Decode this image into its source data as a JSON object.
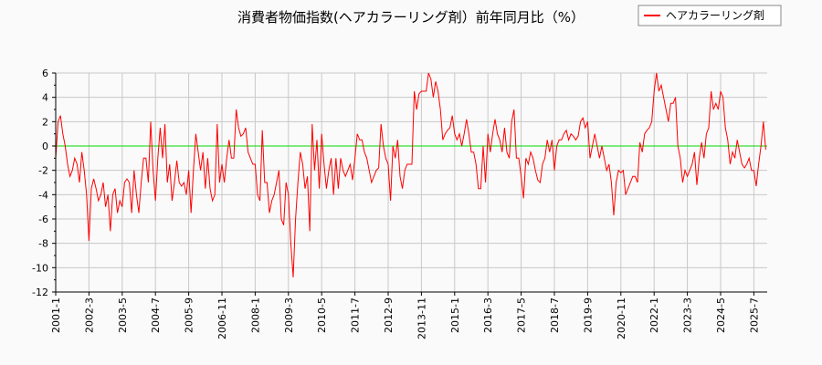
{
  "chart_data": {
    "type": "line",
    "title": "消費者物価指数(ヘアカラーリング剤）前年同月比（%）",
    "xlabel": "",
    "ylabel": "",
    "ylim": [
      -12,
      6
    ],
    "yticks": [
      6,
      4,
      2,
      0,
      -2,
      -4,
      -6,
      -8,
      -10,
      -12
    ],
    "grid": true,
    "legend_position": "top-right",
    "x_start": "2001-1",
    "x_end": "2025-12",
    "xticks": [
      "2001-1",
      "2002-3",
      "2003-5",
      "2004-7",
      "2005-9",
      "2006-11",
      "2008-1",
      "2009-3",
      "2010-5",
      "2011-7",
      "2012-9",
      "2013-11",
      "2015-1",
      "2016-3",
      "2017-5",
      "2018-7",
      "2019-9",
      "2020-11",
      "2022-1",
      "2023-3",
      "2024-5",
      "2025-7"
    ],
    "zero_line_color": "#00dd00",
    "series": [
      {
        "name": "ヘアカラーリング剤",
        "color": "#ff0000",
        "values": [
          -1,
          2.0,
          2.5,
          1.0,
          0,
          -1.5,
          -2.5,
          -2,
          -1,
          -1.5,
          -3,
          -0.5,
          -2,
          -4,
          -7.8,
          -3.5,
          -2.7,
          -3.5,
          -4.5,
          -4,
          -3,
          -5,
          -4,
          -7,
          -4,
          -3.5,
          -5.5,
          -4.5,
          -5,
          -3,
          -2.7,
          -3,
          -5.5,
          -2,
          -4,
          -5.5,
          -3,
          -1,
          -1,
          -3,
          2,
          -2,
          -4.5,
          -1,
          1.5,
          -1,
          1.8,
          -3,
          -1.5,
          -4.5,
          -3,
          -1.2,
          -3,
          -3.3,
          -3,
          -4,
          -2,
          -5.5,
          -2,
          1,
          -0.5,
          -2,
          -0.5,
          -3.5,
          -1,
          -3.5,
          -4.5,
          -4,
          1.8,
          -3,
          -1.5,
          -3,
          -1,
          0.5,
          -1,
          -1,
          3,
          1.5,
          0.8,
          1,
          1.5,
          -0.5,
          -1,
          -1.5,
          -1.5,
          -4,
          -4.5,
          1.3,
          -3,
          -3,
          -5.5,
          -4.5,
          -4,
          -3,
          -2,
          -6,
          -6.5,
          -3,
          -4,
          -8,
          -10.8,
          -6,
          -3,
          -0.5,
          -1.5,
          -3.5,
          -2.5,
          -7,
          1.8,
          -2,
          0.5,
          -3.5,
          1,
          -1.5,
          -3.5,
          -2,
          -1,
          -4,
          -1,
          -3.5,
          -1,
          -2,
          -2.5,
          -2,
          -1.5,
          -2.8,
          -1,
          1,
          0.5,
          0.5,
          -0.5,
          -1,
          -2,
          -3,
          -2.5,
          -2,
          -1.8,
          1.8,
          0,
          -1,
          -1.5,
          -4.5,
          0,
          -1,
          0.5,
          -2.5,
          -3.5,
          -2,
          -1.5,
          -1.5,
          -1.5,
          4.5,
          3,
          4.3,
          4.5,
          4.5,
          4.5,
          6,
          5.5,
          4,
          5.3,
          4.5,
          3,
          0.5,
          1,
          1.3,
          1.5,
          2.5,
          1,
          0.5,
          1,
          0,
          1,
          2.2,
          1,
          -0.5,
          -0.5,
          -1.5,
          -3.5,
          -3.5,
          0,
          -3,
          1,
          -0.5,
          1,
          2.2,
          1,
          0.5,
          -0.5,
          1.5,
          -0.5,
          -1,
          2,
          3,
          -1,
          -1,
          -2.5,
          -4.3,
          -1,
          -1.5,
          -0.5,
          -1,
          -2,
          -2.8,
          -3,
          -1.5,
          -1,
          0.5,
          -0.5,
          0.5,
          -2,
          0,
          0.5,
          0.5,
          1,
          1.3,
          0.5,
          1,
          0.8,
          0.5,
          0.8,
          2,
          2.3,
          1.5,
          2,
          -1,
          0,
          1,
          0,
          -1,
          0,
          -1,
          -2,
          -1.5,
          -3,
          -5.7,
          -3,
          -2,
          -2.2,
          -2,
          -4,
          -3.5,
          -3,
          -2.5,
          -2.5,
          -3,
          0.3,
          -0.5,
          1,
          1.3,
          1.5,
          2,
          4.5,
          6,
          4.5,
          5,
          4,
          3,
          2,
          3.5,
          3.5,
          4,
          0,
          -1,
          -3,
          -2,
          -2.5,
          -2,
          -1.5,
          -0.5,
          -3.2,
          -1,
          0.3,
          -1,
          1,
          1.5,
          4.5,
          3,
          3.5,
          3,
          4.5,
          4,
          1.5,
          0.5,
          -1.5,
          -0.5,
          -1,
          0.5,
          -0.5,
          -1.5,
          -1.8,
          -1.5,
          -1,
          -2,
          -2,
          -3.3,
          -1.5,
          0,
          2,
          -0.3
        ]
      }
    ]
  }
}
